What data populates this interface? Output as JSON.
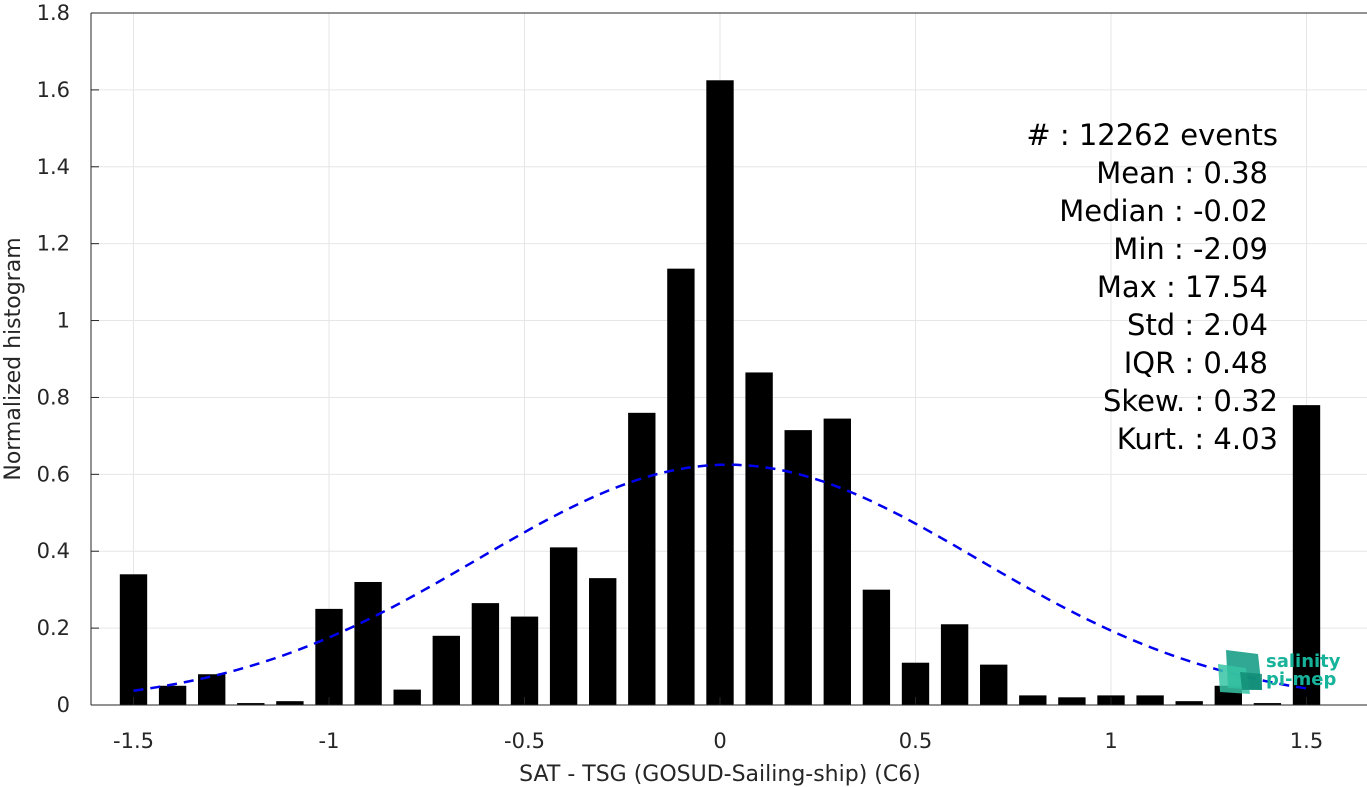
{
  "chart_data": {
    "type": "bar",
    "xlabel": "SAT - TSG (GOSUD-Sailing-ship) (C6)",
    "ylabel": "Normalized histogram",
    "xlim": [
      -1.6,
      1.6
    ],
    "ylim": [
      0,
      1.8
    ],
    "grid": true,
    "bar_color": "#000000",
    "fit_color": "#0000ee",
    "x_ticks": [
      "-1.5",
      "-1",
      "-0.5",
      "0",
      "0.5",
      "1",
      "1.5"
    ],
    "x_tick_values": [
      -1.5,
      -1,
      -0.5,
      0,
      0.5,
      1,
      1.5
    ],
    "y_ticks": [
      "0",
      "0.2",
      "0.4",
      "0.6",
      "0.8",
      "1",
      "1.2",
      "1.4",
      "1.6",
      "1.8"
    ],
    "y_tick_values": [
      0,
      0.2,
      0.4,
      0.6,
      0.8,
      1,
      1.2,
      1.4,
      1.6,
      1.8
    ],
    "bin_centers": [
      -1.5,
      -1.4,
      -1.3,
      -1.2,
      -1.1,
      -1.0,
      -0.9,
      -0.8,
      -0.7,
      -0.6,
      -0.5,
      -0.4,
      -0.3,
      -0.2,
      -0.1,
      0.0,
      0.1,
      0.2,
      0.3,
      0.4,
      0.5,
      0.6,
      0.7,
      0.8,
      0.9,
      1.0,
      1.1,
      1.2,
      1.3,
      1.4,
      1.5
    ],
    "values": [
      0.34,
      0.05,
      0.08,
      0.005,
      0.01,
      0.25,
      0.32,
      0.04,
      0.18,
      0.265,
      0.23,
      0.41,
      0.33,
      0.76,
      1.135,
      1.625,
      0.865,
      0.715,
      0.745,
      0.3,
      0.11,
      0.21,
      0.105,
      0.025,
      0.02,
      0.025,
      0.025,
      0.01,
      0.05,
      0.005,
      0.78
    ],
    "fit_curve": {
      "style": "dashed",
      "mean": 0.02,
      "std": 0.64,
      "peak": 0.625,
      "x_range": [
        -1.5,
        1.5
      ]
    }
  },
  "stats": {
    "lines": [
      "#  : 12262 events",
      "Mean : 0.38",
      "Median : -0.02",
      "Min : -2.09",
      "Max : 17.54",
      "Std : 2.04",
      "IQR : 0.48",
      "Skew. : 0.32",
      "Kurt. : 4.03"
    ]
  },
  "logo": {
    "line1": "salinity",
    "line2": "pi-mep",
    "color": "#16b39a"
  }
}
